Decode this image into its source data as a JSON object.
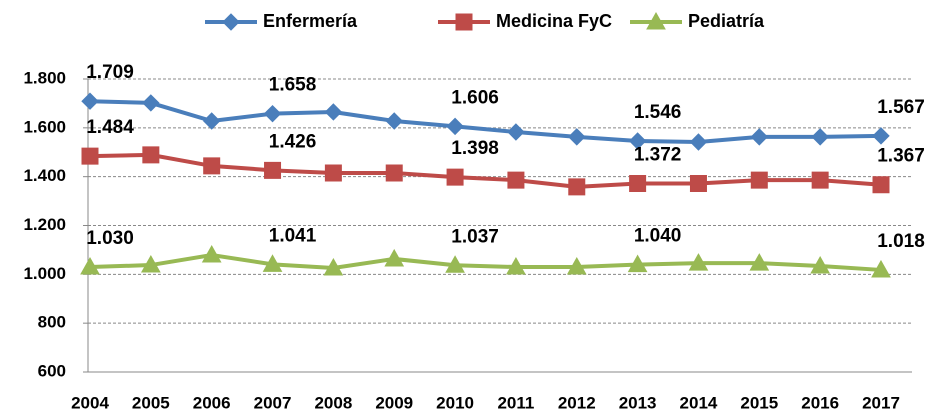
{
  "chart_data": {
    "type": "line",
    "categories": [
      "2004",
      "2005",
      "2006",
      "2007",
      "2008",
      "2009",
      "2010",
      "2011",
      "2012",
      "2013",
      "2014",
      "2015",
      "2016",
      "2017"
    ],
    "series": [
      {
        "name": "Enfermería",
        "color": "#4a7ebb",
        "marker": "diamond",
        "values": [
          1709,
          1702,
          1628,
          1658,
          1665,
          1628,
          1606,
          1583,
          1563,
          1546,
          1542,
          1563,
          1563,
          1567
        ],
        "value_labels": [
          "1.709",
          null,
          null,
          "1.658",
          null,
          null,
          "1.606",
          null,
          null,
          "1.546",
          null,
          null,
          null,
          "1.567"
        ]
      },
      {
        "name": "Medicina FyC",
        "color": "#be4b48",
        "marker": "square",
        "values": [
          1484,
          1489,
          1444,
          1426,
          1415,
          1415,
          1398,
          1386,
          1358,
          1372,
          1372,
          1386,
          1386,
          1367
        ],
        "value_labels": [
          "1.484",
          null,
          null,
          "1.426",
          null,
          null,
          "1.398",
          null,
          null,
          "1.372",
          null,
          null,
          null,
          "1.367"
        ]
      },
      {
        "name": "Pediatría",
        "color": "#98b954",
        "marker": "triangle",
        "values": [
          1030,
          1038,
          1079,
          1041,
          1026,
          1063,
          1037,
          1030,
          1030,
          1040,
          1046,
          1046,
          1034,
          1018
        ],
        "value_labels": [
          "1.030",
          null,
          null,
          "1.041",
          null,
          null,
          "1.037",
          null,
          null,
          "1.040",
          null,
          null,
          null,
          "1.018"
        ]
      }
    ],
    "ylim": [
      600,
      1800
    ],
    "yticks": [
      {
        "value": 600,
        "label": "600"
      },
      {
        "value": 800,
        "label": "800"
      },
      {
        "value": 1000,
        "label": "1.000"
      },
      {
        "value": 1200,
        "label": "1.200"
      },
      {
        "value": 1400,
        "label": "1.400"
      },
      {
        "value": 1600,
        "label": "1.600"
      },
      {
        "value": 1800,
        "label": "1.800"
      }
    ],
    "grid": true,
    "legend": "top"
  }
}
